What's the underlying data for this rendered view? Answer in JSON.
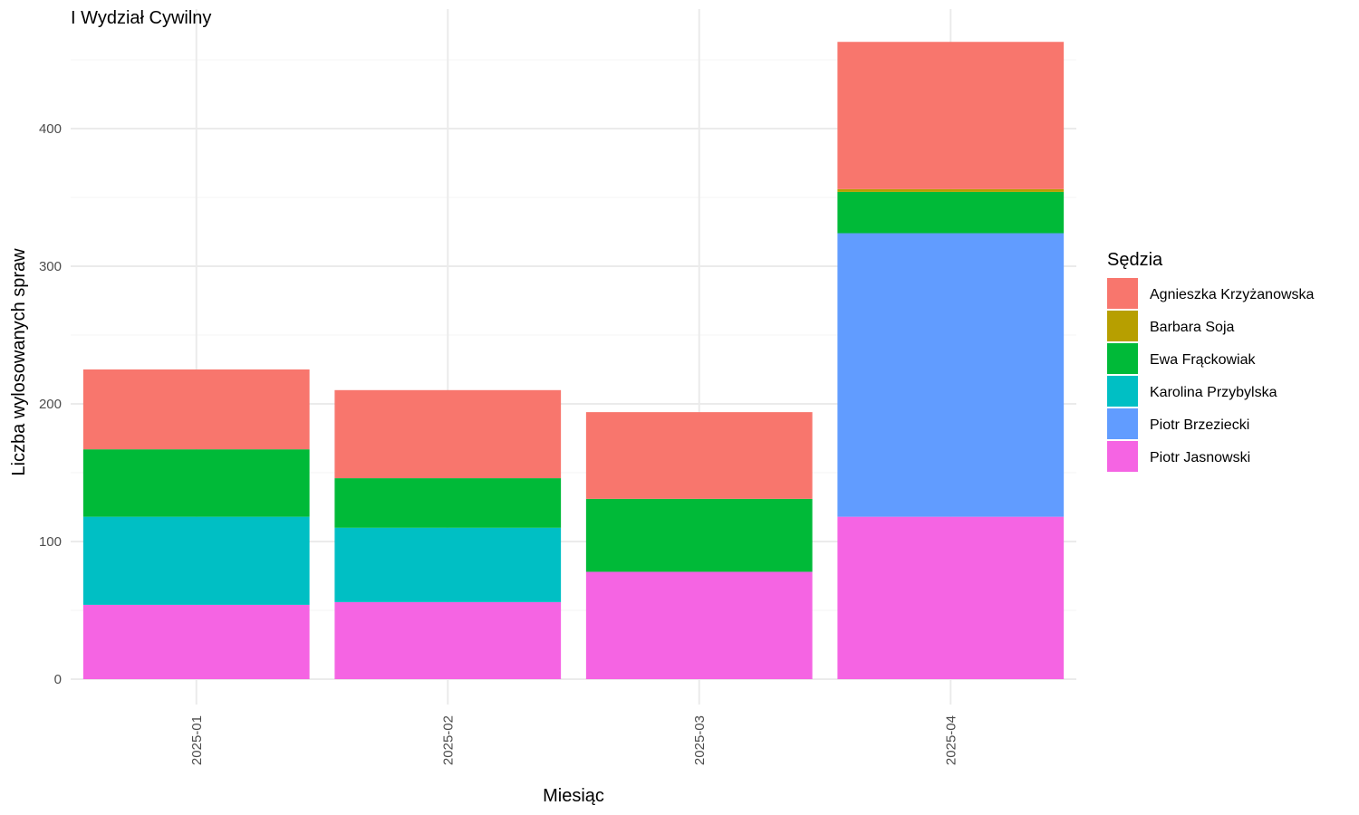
{
  "chart_data": {
    "type": "bar",
    "stacked": true,
    "title": "I Wydział Cywilny",
    "xlabel": "Miesiąc",
    "ylabel": "Liczba wylosowanych spraw",
    "categories": [
      "2025-01",
      "2025-02",
      "2025-03",
      "2025-04"
    ],
    "ylim": [
      0,
      470
    ],
    "yticks": [
      0,
      100,
      200,
      300,
      400
    ],
    "grid": true,
    "legend_title": "Sędzia",
    "legend_position": "right",
    "stack_order": [
      "Piotr Jasnowski",
      "Piotr Brzeziecki",
      "Karolina Przybylska",
      "Ewa Frąckowiak",
      "Barbara Soja",
      "Agnieszka Krzyżanowska"
    ],
    "series": [
      {
        "name": "Agnieszka Krzyżanowska",
        "color": "#F8766D",
        "values": [
          58,
          64,
          63,
          107
        ]
      },
      {
        "name": "Barbara Soja",
        "color": "#B79F00",
        "values": [
          0,
          0,
          0,
          2
        ]
      },
      {
        "name": "Ewa Frąckowiak",
        "color": "#00BA38",
        "values": [
          49,
          36,
          53,
          30
        ]
      },
      {
        "name": "Karolina Przybylska",
        "color": "#00BFC4",
        "values": [
          64,
          54,
          0,
          0
        ]
      },
      {
        "name": "Piotr Brzeziecki",
        "color": "#619CFF",
        "values": [
          0,
          0,
          0,
          206
        ]
      },
      {
        "name": "Piotr Jasnowski",
        "color": "#F564E3",
        "values": [
          54,
          56,
          78,
          118
        ]
      }
    ]
  }
}
